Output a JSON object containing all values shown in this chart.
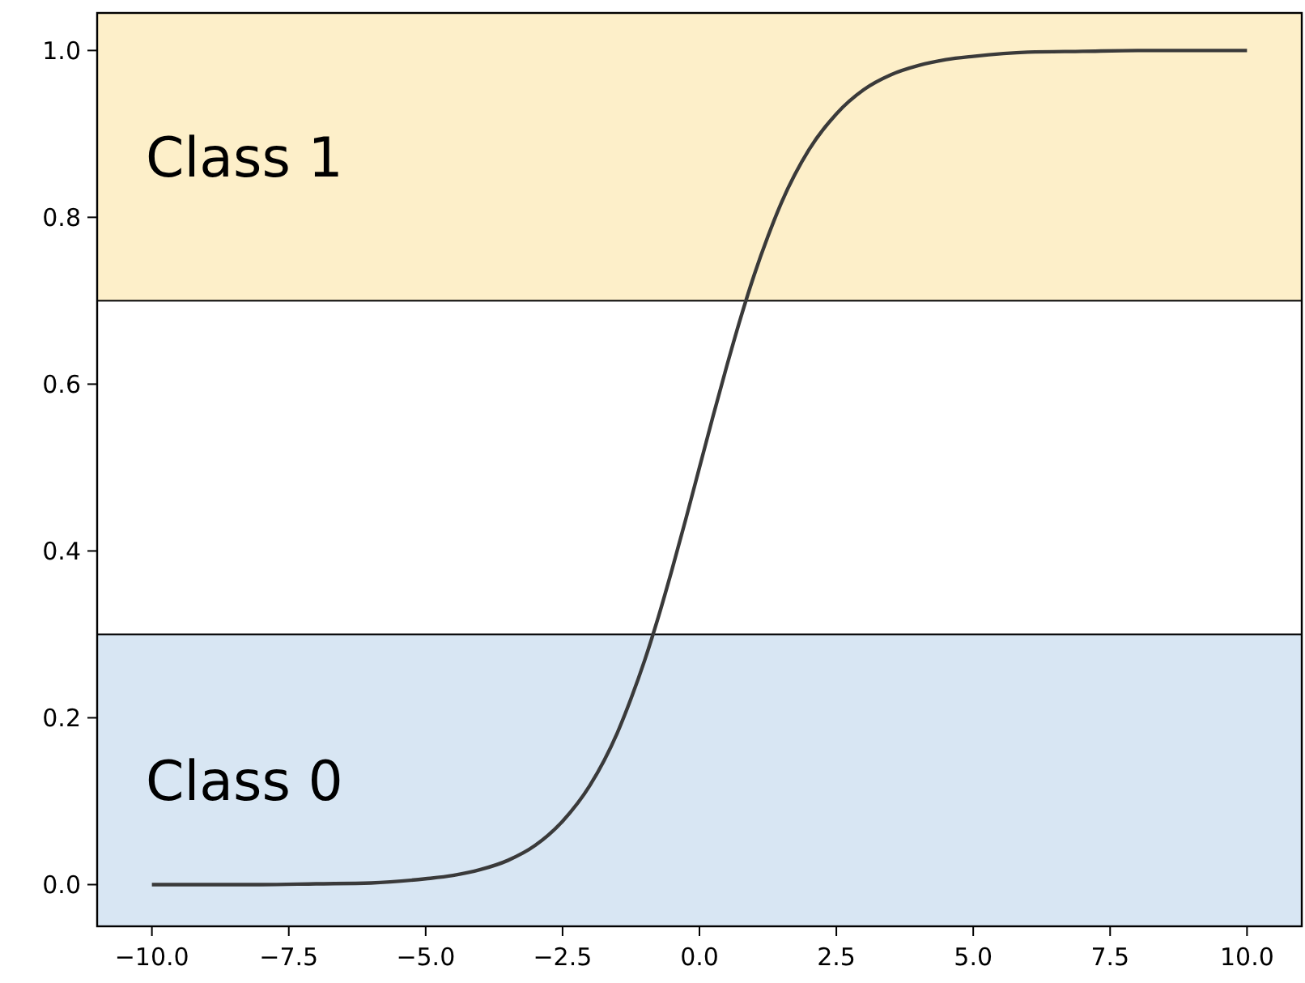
{
  "chart_data": {
    "type": "line",
    "x": [
      -10,
      -9,
      -8,
      -7,
      -6,
      -5,
      -4.5,
      -4,
      -3.5,
      -3,
      -2.5,
      -2,
      -1.5,
      -1.25,
      -1,
      -0.75,
      -0.5,
      -0.25,
      0,
      0.25,
      0.5,
      0.75,
      1,
      1.25,
      1.5,
      2,
      2.5,
      3,
      3.5,
      4,
      4.5,
      5,
      6,
      7,
      8,
      9,
      10
    ],
    "series": [
      {
        "color": "#3a3a3a",
        "values": [
          0.0,
          0.0,
          0.0,
          0.001,
          0.002,
          0.007,
          0.011,
          0.018,
          0.029,
          0.047,
          0.076,
          0.119,
          0.182,
          0.223,
          0.269,
          0.321,
          0.378,
          0.438,
          0.5,
          0.562,
          0.622,
          0.679,
          0.731,
          0.777,
          0.818,
          0.881,
          0.924,
          0.953,
          0.971,
          0.982,
          0.989,
          0.993,
          0.998,
          0.999,
          1.0,
          1.0,
          1.0
        ]
      }
    ],
    "xlim": [
      -11,
      11
    ],
    "ylim": [
      -0.05,
      1.045
    ],
    "xticks": [
      {
        "value": -10,
        "label": "−10.0"
      },
      {
        "value": -7.5,
        "label": "−7.5"
      },
      {
        "value": -5,
        "label": "−5.0"
      },
      {
        "value": -2.5,
        "label": "−2.5"
      },
      {
        "value": 0,
        "label": "0.0"
      },
      {
        "value": 2.5,
        "label": "2.5"
      },
      {
        "value": 5,
        "label": "5.0"
      },
      {
        "value": 7.5,
        "label": "7.5"
      },
      {
        "value": 10,
        "label": "10.0"
      }
    ],
    "yticks": [
      {
        "value": 0,
        "label": "0.0"
      },
      {
        "value": 0.2,
        "label": "0.2"
      },
      {
        "value": 0.4,
        "label": "0.4"
      },
      {
        "value": 0.6,
        "label": "0.6"
      },
      {
        "value": 0.8,
        "label": "0.8"
      },
      {
        "value": 1,
        "label": "1.0"
      }
    ],
    "bands": [
      {
        "axis": "y",
        "from": 0.7,
        "to": 1.045,
        "label": "Class 1",
        "color": "#fdefc9"
      },
      {
        "axis": "y",
        "from": -0.05,
        "to": 0.3,
        "label": "Class 0",
        "color": "#d8e6f3"
      }
    ],
    "grid": false,
    "marker": "none",
    "line_style": "solid"
  }
}
